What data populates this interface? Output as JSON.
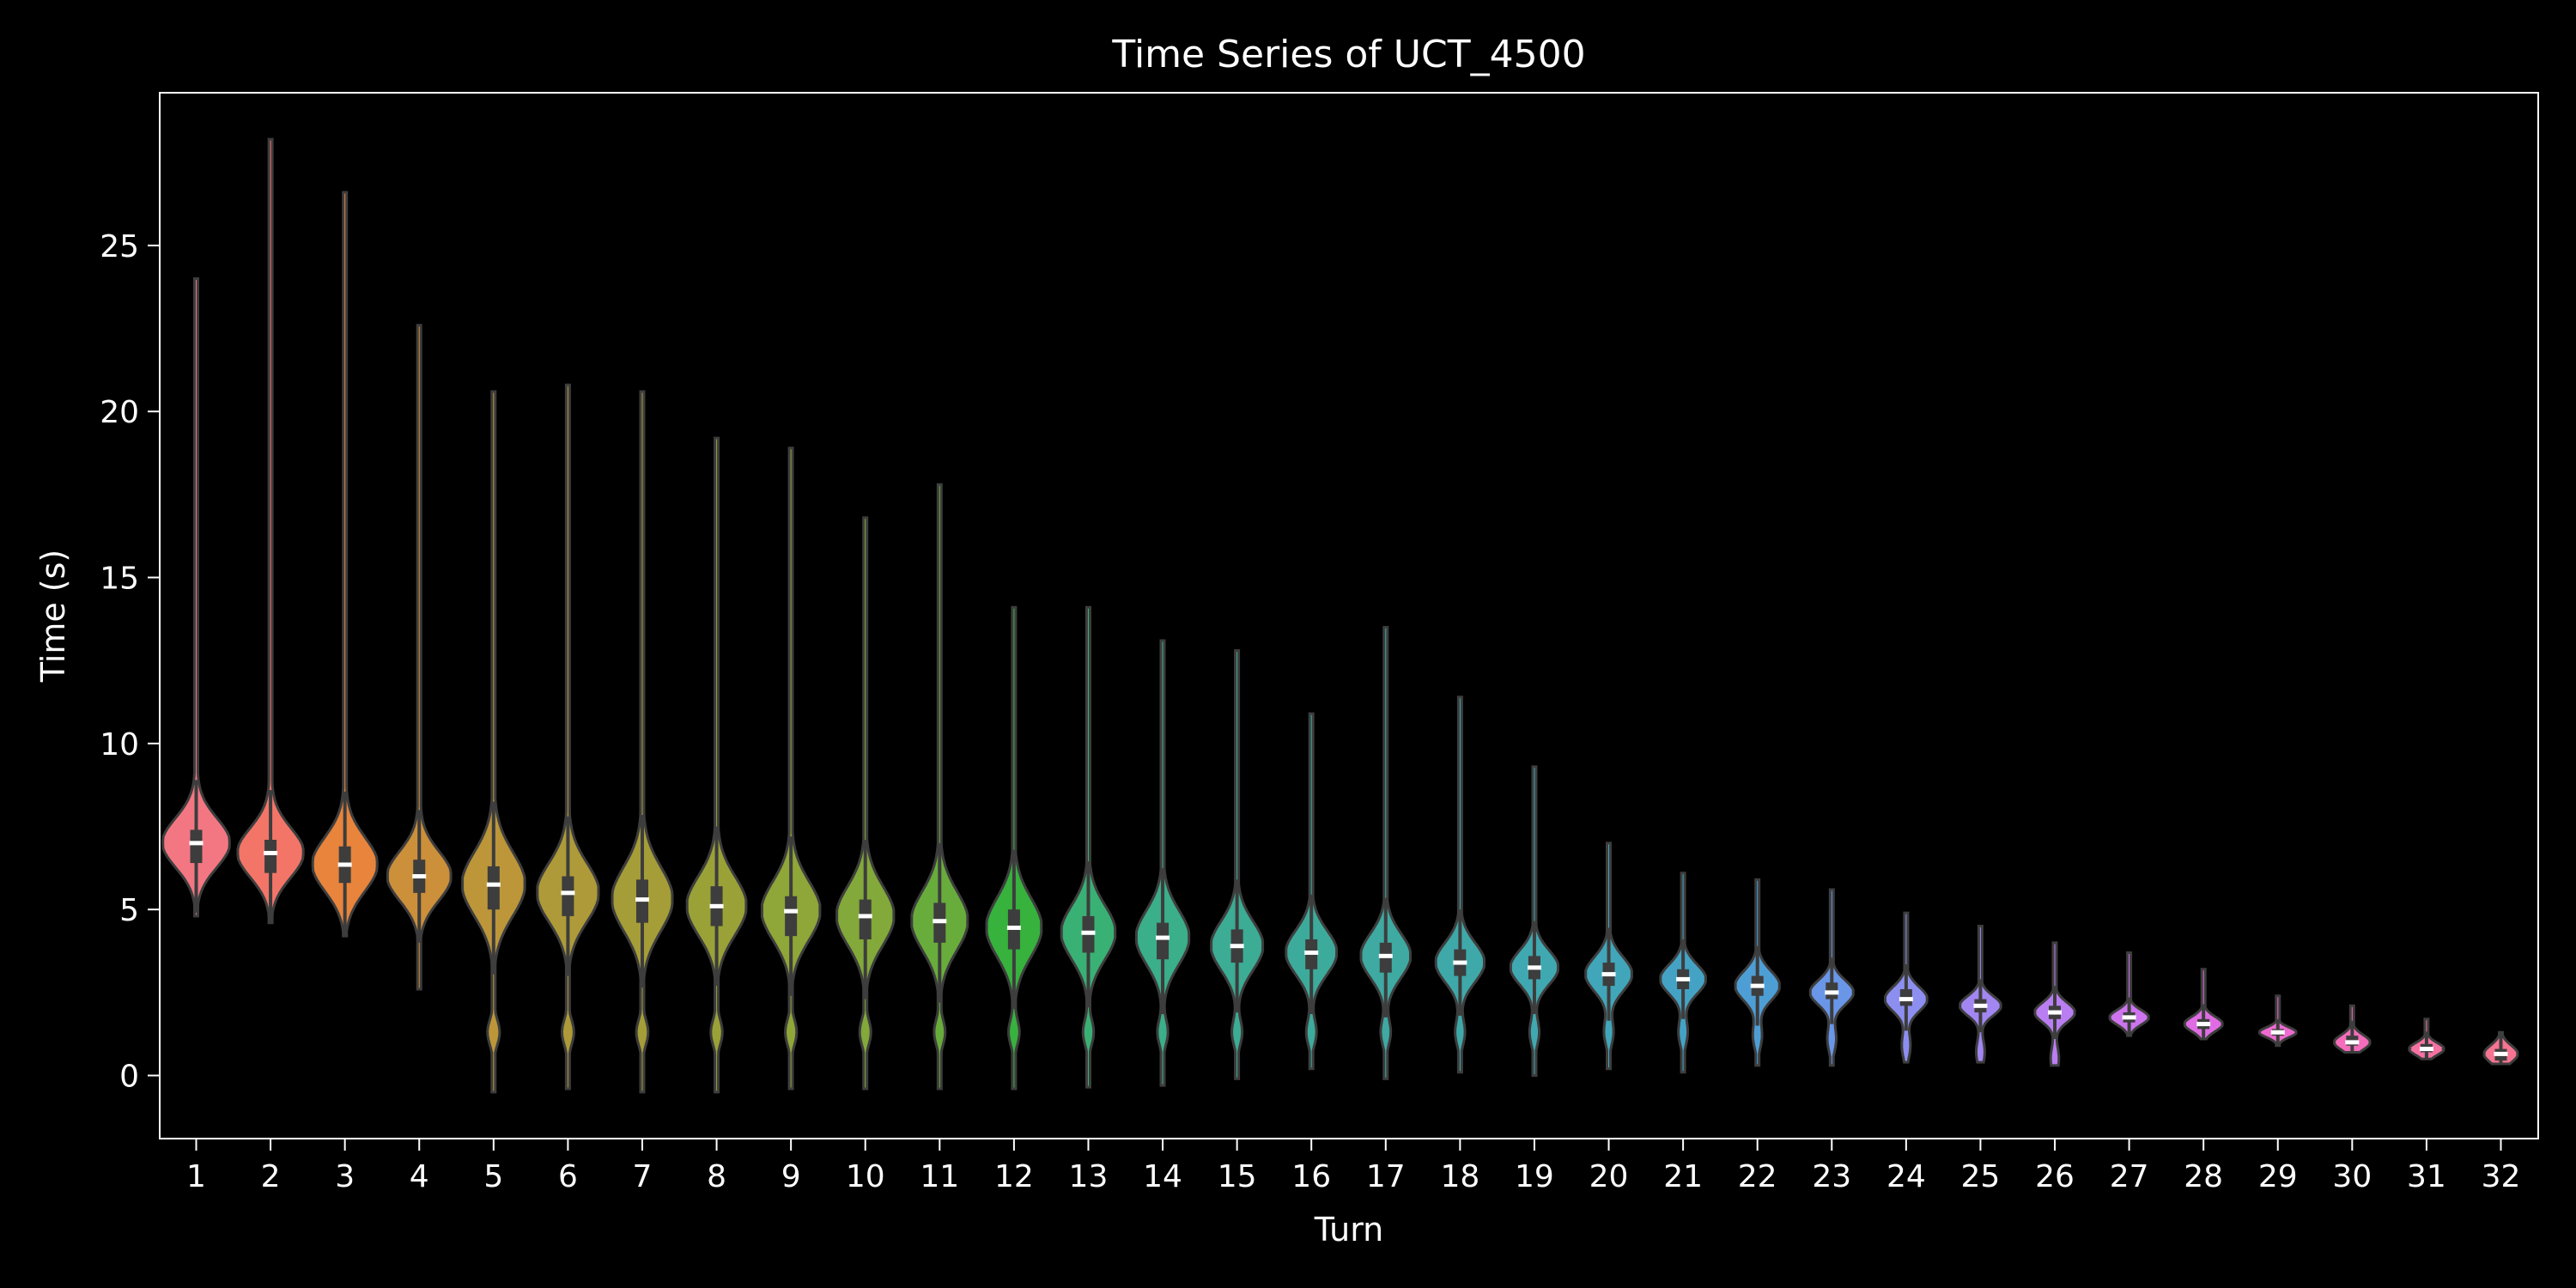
{
  "chart_data": {
    "type": "violin",
    "title": "Time Series of UCT_4500",
    "xlabel": "Turn",
    "ylabel": "Time (s)",
    "ylim": [
      -1.9,
      29.6
    ],
    "yticks": [
      0,
      5,
      10,
      15,
      20,
      25
    ],
    "grid": false,
    "legend": "none",
    "categories": [
      "1",
      "2",
      "3",
      "4",
      "5",
      "6",
      "7",
      "8",
      "9",
      "10",
      "11",
      "12",
      "13",
      "14",
      "15",
      "16",
      "17",
      "18",
      "19",
      "20",
      "21",
      "22",
      "23",
      "24",
      "25",
      "26",
      "27",
      "28",
      "29",
      "30",
      "31",
      "32"
    ],
    "median": [
      7.0,
      6.7,
      6.35,
      6.0,
      5.75,
      5.5,
      5.3,
      5.1,
      4.95,
      4.8,
      4.65,
      4.45,
      4.3,
      4.15,
      3.9,
      3.7,
      3.6,
      3.4,
      3.25,
      3.05,
      2.9,
      2.7,
      2.5,
      2.3,
      2.1,
      1.9,
      1.75,
      1.55,
      1.3,
      1.0,
      0.8,
      0.65
    ],
    "q1": [
      6.4,
      6.1,
      5.8,
      5.5,
      5.0,
      4.8,
      4.6,
      4.5,
      4.2,
      4.1,
      4.0,
      3.8,
      3.7,
      3.5,
      3.4,
      3.2,
      3.1,
      3.0,
      2.9,
      2.7,
      2.6,
      2.4,
      2.3,
      2.1,
      1.9,
      1.7,
      1.6,
      1.4,
      1.2,
      0.9,
      0.7,
      0.45
    ],
    "q3": [
      7.4,
      7.1,
      6.9,
      6.5,
      6.3,
      6.0,
      5.9,
      5.7,
      5.4,
      5.3,
      5.2,
      5.0,
      4.8,
      4.6,
      4.4,
      4.1,
      4.0,
      3.8,
      3.6,
      3.4,
      3.2,
      3.0,
      2.8,
      2.6,
      2.3,
      2.1,
      1.9,
      1.7,
      1.4,
      1.2,
      0.95,
      0.8
    ],
    "min": [
      4.8,
      4.6,
      4.2,
      2.6,
      -0.5,
      -0.4,
      -0.5,
      -0.5,
      -0.4,
      -0.4,
      -0.4,
      -0.4,
      -0.35,
      -0.3,
      -0.1,
      0.2,
      -0.1,
      0.1,
      0.0,
      0.2,
      0.1,
      0.3,
      0.3,
      0.4,
      0.4,
      0.3,
      1.2,
      1.1,
      0.9,
      0.7,
      0.5,
      0.35
    ],
    "max": [
      24.0,
      28.2,
      26.6,
      22.6,
      20.6,
      20.8,
      20.6,
      19.2,
      18.9,
      16.8,
      17.8,
      14.1,
      14.1,
      13.1,
      12.8,
      10.9,
      13.5,
      11.4,
      9.3,
      7.0,
      6.1,
      5.9,
      5.6,
      4.9,
      4.5,
      4.0,
      3.7,
      3.2,
      2.4,
      2.1,
      1.7,
      1.3
    ],
    "colors": [
      "#f37782",
      "#f37568",
      "#e8843c",
      "#cc8f3a",
      "#bc9639",
      "#ae9a38",
      "#a59d37",
      "#9aa237",
      "#8fa638",
      "#82a939",
      "#68ad3b",
      "#36b23d",
      "#39b174",
      "#3bae8a",
      "#3cac94",
      "#3dab9b",
      "#3eaaa2",
      "#3fa9a9",
      "#40a8b1",
      "#41a6ba",
      "#44a3c5",
      "#4e9ed6",
      "#6a96e8",
      "#8c8ff0",
      "#a286f1",
      "#b97ef1",
      "#cd74ee",
      "#df6ce3",
      "#ee6ad0",
      "#f56cbb",
      "#f672a3",
      "#f47491"
    ]
  }
}
